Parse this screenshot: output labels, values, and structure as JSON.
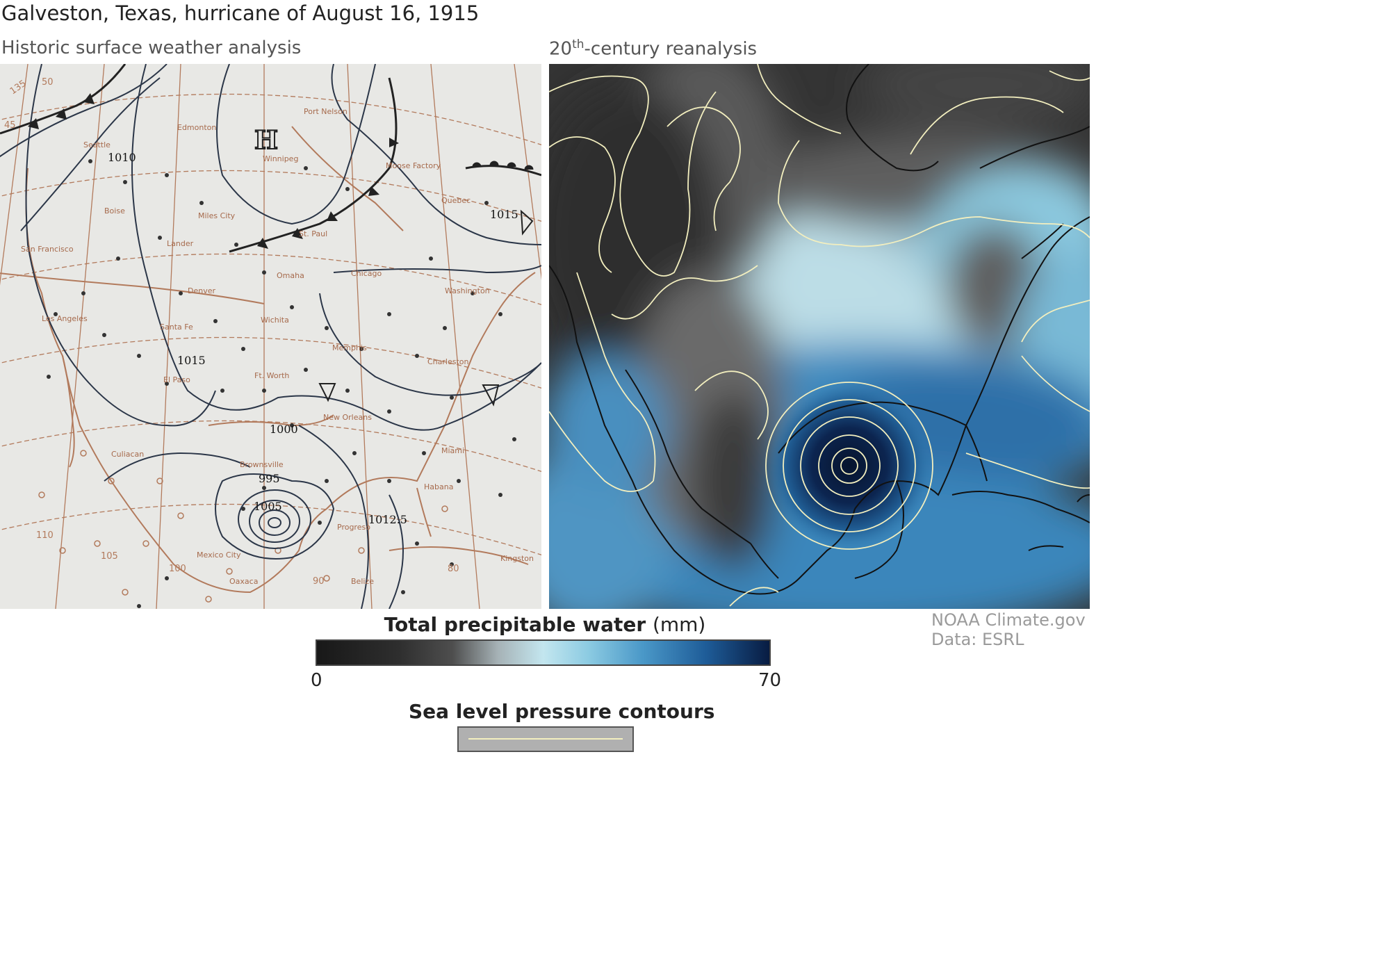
{
  "title": "Galveston, Texas, hurricane of August 16, 1915",
  "left_panel": {
    "subtitle": "Historic surface weather analysis",
    "map_labels": {
      "seattle": "Seattle",
      "boise": "Boise",
      "san_francisco": "San Francisco",
      "los_angeles": "Los Angeles",
      "lander": "Lander",
      "miles_city": "Miles City",
      "edmonton": "Edmonton",
      "port_nelson": "Port Nelson",
      "moose_factory": "Moose Factory",
      "winnipeg": "Winnipeg",
      "st_paul": "St. Paul",
      "quebec": "Quebec",
      "omaha": "Omaha",
      "denver": "Denver",
      "chicago": "Chicago",
      "washington": "Washington",
      "wichita": "Wichita",
      "santa_fe": "Santa Fe",
      "memphis": "Memphis",
      "charleston": "Charleston",
      "el_paso": "El Paso",
      "fort_worth": "Ft. Worth",
      "new_orleans": "New Orleans",
      "brownsville": "Brownsville",
      "culiacan": "Culiacan",
      "miami": "Miami",
      "havana": "Habana",
      "progreso": "Progreso",
      "mexico_city": "Mexico City",
      "oaxaca": "Oaxaca",
      "belize": "Belize",
      "kingston": "Kingston"
    },
    "isobar_labels": [
      "1010",
      "1015",
      "1015",
      "1000",
      "995",
      "1005",
      "1012.5"
    ],
    "grid_labels": [
      "135",
      "45",
      "50",
      "110",
      "105",
      "100",
      "90",
      "80"
    ],
    "high_pressure_symbol": "H"
  },
  "right_panel": {
    "subtitle_main": "20",
    "subtitle_sup": "th",
    "subtitle_rest": "-century reanalysis"
  },
  "legend": {
    "title_bold": "Total precipitable water",
    "title_unit": "(mm)",
    "min": "0",
    "max": "70",
    "contours_title": "Sea level pressure contours"
  },
  "credit": {
    "line1": "NOAA Climate.gov",
    "line2": "Data: ESRL"
  },
  "colors": {
    "map_paper": "#e6e6e3",
    "map_boundary": "#b27a5c",
    "isobar": "#2b3648",
    "contour": "#f3efbf",
    "coastline": "#111111",
    "tpw_low": "#181818",
    "tpw_mid": "#c3e6ef",
    "tpw_high": "#081c42"
  }
}
